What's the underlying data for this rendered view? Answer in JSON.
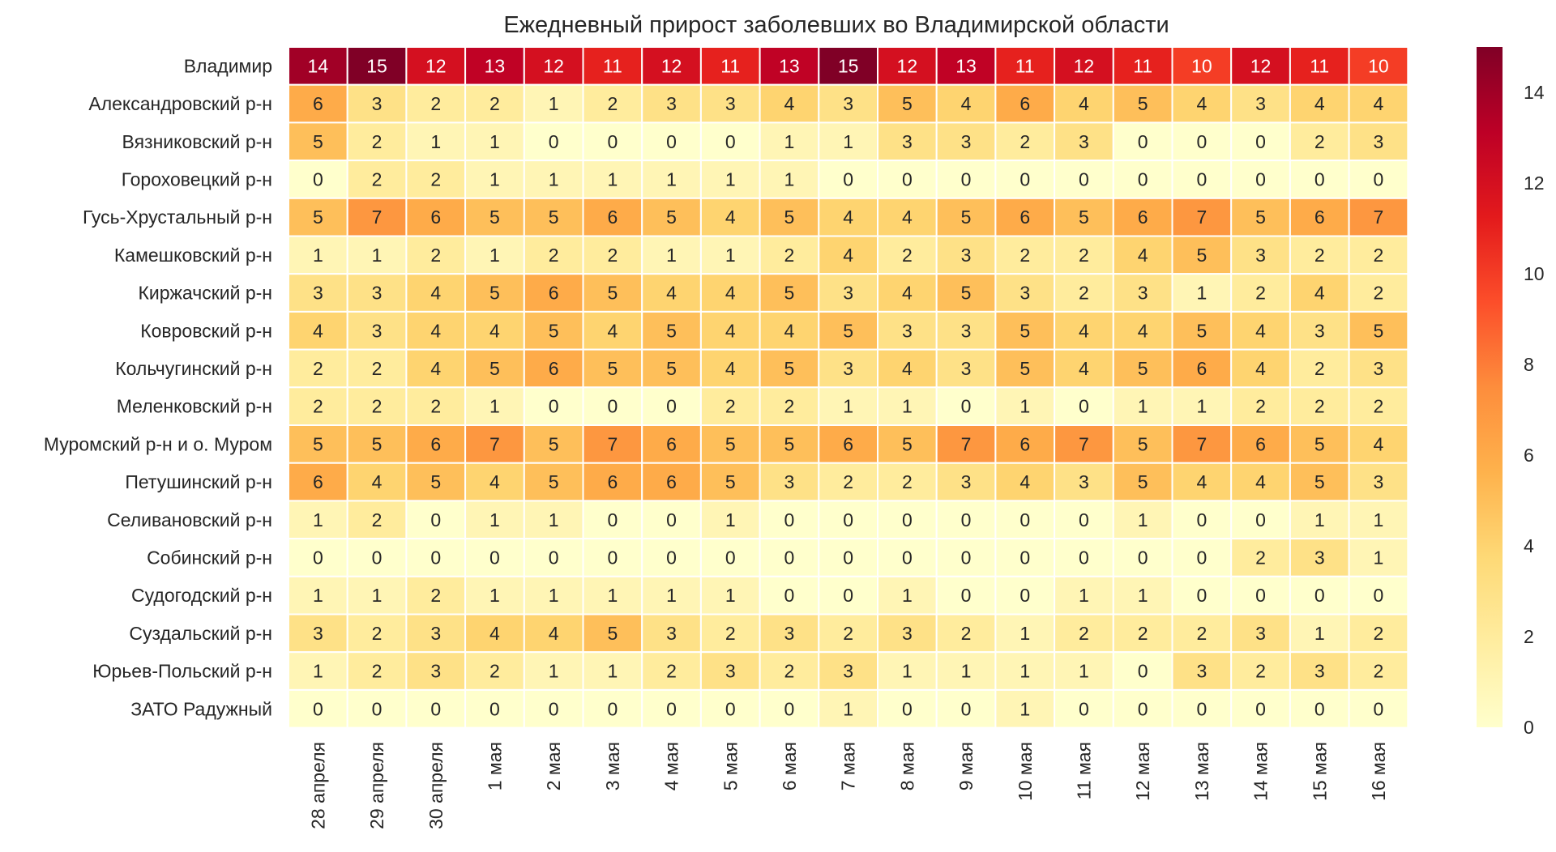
{
  "chart_data": {
    "type": "heatmap",
    "title": "Ежедневный прирост заболевших во Владимирской области",
    "xlabel": "",
    "ylabel": "",
    "columns": [
      "28 апреля",
      "29 апреля",
      "30 апреля",
      "1 мая",
      "2 мая",
      "3 мая",
      "4 мая",
      "5 мая",
      "6 мая",
      "7 мая",
      "8 мая",
      "9 мая",
      "10 мая",
      "11 мая",
      "12 мая",
      "13 мая",
      "14 мая",
      "15 мая",
      "16 мая"
    ],
    "rows": [
      "Владимир",
      "Александровский р-н",
      "Вязниковский р-н",
      "Гороховецкий р-н",
      "Гусь-Хрустальный р-н",
      "Камешковский р-н",
      "Киржачский р-н",
      "Ковровский р-н",
      "Кольчугинский р-н",
      "Меленковский р-н",
      "Муромский р-н и о. Муром",
      "Петушинский р-н",
      "Селивановский р-н",
      "Собинский р-н",
      "Судогодский р-н",
      "Суздальский р-н",
      "Юрьев-Польский р-н",
      "ЗАТО Радужный"
    ],
    "values": [
      [
        14,
        15,
        12,
        13,
        12,
        11,
        12,
        11,
        13,
        15,
        12,
        13,
        11,
        12,
        11,
        10,
        12,
        11,
        10
      ],
      [
        6,
        3,
        2,
        2,
        1,
        2,
        3,
        3,
        4,
        3,
        5,
        4,
        6,
        4,
        5,
        4,
        3,
        4,
        4
      ],
      [
        5,
        2,
        1,
        1,
        0,
        0,
        0,
        0,
        1,
        1,
        3,
        3,
        2,
        3,
        0,
        0,
        0,
        2,
        3
      ],
      [
        0,
        2,
        2,
        1,
        1,
        1,
        1,
        1,
        1,
        0,
        0,
        0,
        0,
        0,
        0,
        0,
        0,
        0,
        0
      ],
      [
        5,
        7,
        6,
        5,
        5,
        6,
        5,
        4,
        5,
        4,
        4,
        5,
        6,
        5,
        6,
        7,
        5,
        6,
        7
      ],
      [
        1,
        1,
        2,
        1,
        2,
        2,
        1,
        1,
        2,
        4,
        2,
        3,
        2,
        2,
        4,
        5,
        3,
        2,
        2
      ],
      [
        3,
        3,
        4,
        5,
        6,
        5,
        4,
        4,
        5,
        3,
        4,
        5,
        3,
        2,
        3,
        1,
        2,
        4,
        2
      ],
      [
        4,
        3,
        4,
        4,
        5,
        4,
        5,
        4,
        4,
        5,
        3,
        3,
        5,
        4,
        4,
        5,
        4,
        3,
        5
      ],
      [
        2,
        2,
        4,
        5,
        6,
        5,
        5,
        4,
        5,
        3,
        4,
        3,
        5,
        4,
        5,
        6,
        4,
        2,
        3
      ],
      [
        2,
        2,
        2,
        1,
        0,
        0,
        0,
        2,
        2,
        1,
        1,
        0,
        1,
        0,
        1,
        1,
        2,
        2,
        2
      ],
      [
        5,
        5,
        6,
        7,
        5,
        7,
        6,
        5,
        5,
        6,
        5,
        7,
        6,
        7,
        5,
        7,
        6,
        5,
        4
      ],
      [
        6,
        4,
        5,
        4,
        5,
        6,
        6,
        5,
        3,
        2,
        2,
        3,
        4,
        3,
        5,
        4,
        4,
        5,
        3
      ],
      [
        1,
        2,
        0,
        1,
        1,
        0,
        0,
        1,
        0,
        0,
        0,
        0,
        0,
        0,
        1,
        0,
        0,
        1,
        1
      ],
      [
        0,
        0,
        0,
        0,
        0,
        0,
        0,
        0,
        0,
        0,
        0,
        0,
        0,
        0,
        0,
        0,
        2,
        3,
        1
      ],
      [
        1,
        1,
        2,
        1,
        1,
        1,
        1,
        1,
        0,
        0,
        1,
        0,
        0,
        1,
        1,
        0,
        0,
        0,
        0
      ],
      [
        3,
        2,
        3,
        4,
        4,
        5,
        3,
        2,
        3,
        2,
        3,
        2,
        1,
        2,
        2,
        2,
        3,
        1,
        2
      ],
      [
        1,
        2,
        3,
        2,
        1,
        1,
        2,
        3,
        2,
        3,
        1,
        1,
        1,
        1,
        0,
        3,
        2,
        3,
        2
      ],
      [
        0,
        0,
        0,
        0,
        0,
        0,
        0,
        0,
        0,
        1,
        0,
        0,
        1,
        0,
        0,
        0,
        0,
        0,
        0
      ]
    ],
    "colorbar": {
      "min": 0,
      "max": 15,
      "ticks": [
        0,
        2,
        4,
        6,
        8,
        10,
        12,
        14
      ]
    },
    "colormap": {
      "name": "YlOrRd",
      "stops": [
        "#ffffcc",
        "#ffeda0",
        "#fed976",
        "#feb24c",
        "#fd8d3c",
        "#fc4e2a",
        "#e31a1c",
        "#bd0026",
        "#800026"
      ]
    },
    "cell_label_light_color": "#ffffff",
    "cell_label_dark_color": "#262626",
    "grid_color": "#ffffff"
  }
}
